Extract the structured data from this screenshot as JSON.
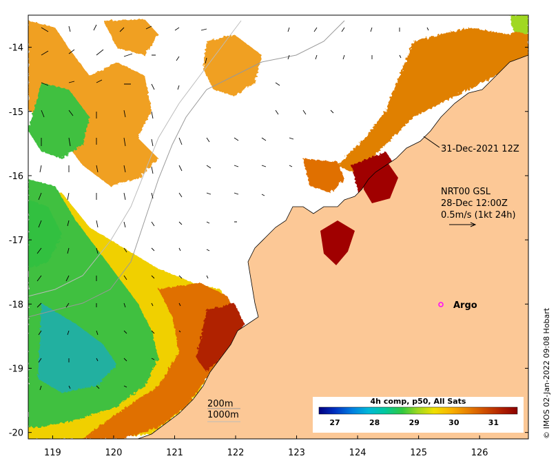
{
  "map": {
    "lon_range": [
      118.6,
      126.8
    ],
    "lat_range": [
      -20.1,
      -13.5
    ],
    "x_ticks": [
      "119",
      "120",
      "121",
      "122",
      "123",
      "124",
      "125",
      "126"
    ],
    "y_ticks": [
      "-14",
      "-15",
      "-16",
      "-17",
      "-18",
      "-19",
      "-20"
    ],
    "land_color": "#fcc896",
    "annotation_time": "31-Dec-2021 12Z",
    "current_source": "NRT00 GSL",
    "current_time": "28-Dec 12:00Z",
    "current_scale": "0.5m/s (1kt 24h)",
    "argo_label": "Argo",
    "argo_position": [
      125.3,
      -18.0
    ],
    "argo_color": "#ff00ff",
    "depth_contour_200": "200m",
    "depth_contour_1000": "1000m"
  },
  "colorbar": {
    "title": "4h comp, p50, All Sats",
    "ticks": [
      "27",
      "28",
      "29",
      "30",
      "31"
    ],
    "range": [
      26.6,
      31.6
    ],
    "colors": [
      "#000080",
      "#0030c0",
      "#0080e0",
      "#00b8d8",
      "#00c8a0",
      "#30c840",
      "#a0d820",
      "#f0e000",
      "#f8b000",
      "#e88000",
      "#d05000",
      "#b02000",
      "#8b0000"
    ]
  },
  "credit": "© IMOS 02-Jan-2022 09:08 Hobart"
}
